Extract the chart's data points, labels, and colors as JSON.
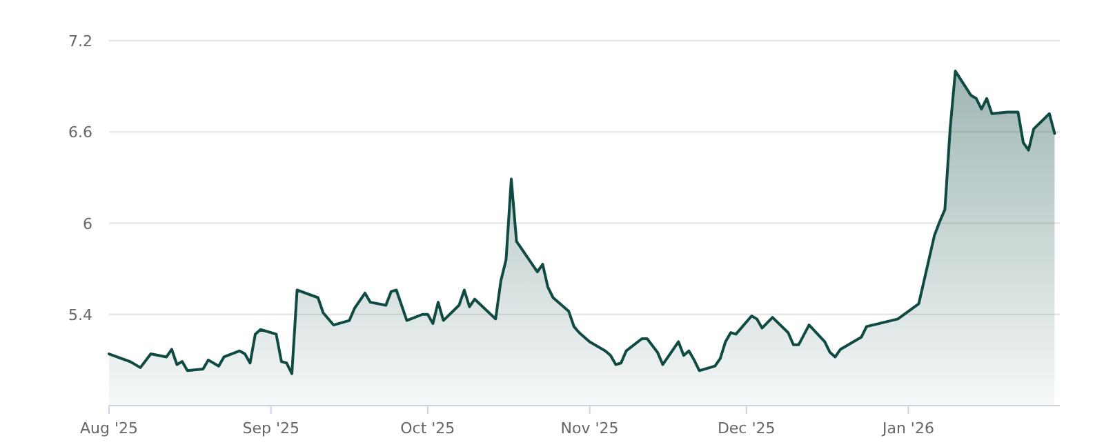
{
  "chart_data": {
    "type": "area",
    "color": "#0f4a43",
    "grid": "y",
    "ylim": [
      4.8,
      7.2
    ],
    "yticks": [
      5.4,
      6,
      6.6,
      7.2
    ],
    "xlim": [
      "2025-08-01",
      "2026-01-30"
    ],
    "xticks": [
      {
        "value": "2025-08-01",
        "label": "Aug '25"
      },
      {
        "value": "2025-09-01",
        "label": "Sep '25"
      },
      {
        "value": "2025-10-01",
        "label": "Oct '25"
      },
      {
        "value": "2025-11-01",
        "label": "Nov '25"
      },
      {
        "value": "2025-12-01",
        "label": "Dec '25"
      },
      {
        "value": "2026-01-01",
        "label": "Jan '26"
      }
    ],
    "x": [
      "2025-08-01",
      "2025-08-05",
      "2025-08-07",
      "2025-08-09",
      "2025-08-12",
      "2025-08-13",
      "2025-08-14",
      "2025-08-15",
      "2025-08-16",
      "2025-08-19",
      "2025-08-20",
      "2025-08-22",
      "2025-08-23",
      "2025-08-26",
      "2025-08-27",
      "2025-08-28",
      "2025-08-29",
      "2025-08-30",
      "2025-09-02",
      "2025-09-03",
      "2025-09-04",
      "2025-09-05",
      "2025-09-06",
      "2025-09-10",
      "2025-09-11",
      "2025-09-13",
      "2025-09-16",
      "2025-09-17",
      "2025-09-19",
      "2025-09-20",
      "2025-09-23",
      "2025-09-24",
      "2025-09-25",
      "2025-09-27",
      "2025-09-30",
      "2025-10-01",
      "2025-10-02",
      "2025-10-03",
      "2025-10-04",
      "2025-10-07",
      "2025-10-08",
      "2025-10-09",
      "2025-10-10",
      "2025-10-14",
      "2025-10-15",
      "2025-10-16",
      "2025-10-17",
      "2025-10-18",
      "2025-10-22",
      "2025-10-23",
      "2025-10-24",
      "2025-10-25",
      "2025-10-28",
      "2025-10-29",
      "2025-10-30",
      "2025-11-01",
      "2025-11-04",
      "2025-11-05",
      "2025-11-06",
      "2025-11-07",
      "2025-11-08",
      "2025-11-11",
      "2025-11-12",
      "2025-11-14",
      "2025-11-15",
      "2025-11-18",
      "2025-11-19",
      "2025-11-20",
      "2025-11-21",
      "2025-11-22",
      "2025-11-25",
      "2025-11-26",
      "2025-11-27",
      "2025-11-28",
      "2025-11-29",
      "2025-12-02",
      "2025-12-03",
      "2025-12-04",
      "2025-12-06",
      "2025-12-09",
      "2025-12-10",
      "2025-12-11",
      "2025-12-13",
      "2025-12-16",
      "2025-12-17",
      "2025-12-18",
      "2025-12-19",
      "2025-12-23",
      "2025-12-24",
      "2025-12-30",
      "2026-01-03",
      "2026-01-06",
      "2026-01-07",
      "2026-01-08",
      "2026-01-09",
      "2026-01-10",
      "2026-01-13",
      "2026-01-14",
      "2026-01-15",
      "2026-01-16",
      "2026-01-17",
      "2026-01-20",
      "2026-01-22",
      "2026-01-23",
      "2026-01-24",
      "2026-01-25",
      "2026-01-28",
      "2026-01-29"
    ],
    "values": [
      5.14,
      5.09,
      5.05,
      5.14,
      5.12,
      5.17,
      5.07,
      5.09,
      5.03,
      5.04,
      5.1,
      5.06,
      5.12,
      5.16,
      5.14,
      5.08,
      5.27,
      5.3,
      5.27,
      5.09,
      5.08,
      5.01,
      5.56,
      5.51,
      5.41,
      5.33,
      5.36,
      5.44,
      5.54,
      5.48,
      5.46,
      5.55,
      5.56,
      5.36,
      5.4,
      5.4,
      5.34,
      5.48,
      5.36,
      5.46,
      5.56,
      5.45,
      5.5,
      5.37,
      5.62,
      5.76,
      6.29,
      5.88,
      5.68,
      5.73,
      5.58,
      5.51,
      5.42,
      5.32,
      5.28,
      5.22,
      5.16,
      5.13,
      5.07,
      5.08,
      5.16,
      5.24,
      5.24,
      5.15,
      5.07,
      5.22,
      5.13,
      5.16,
      5.1,
      5.03,
      5.06,
      5.11,
      5.22,
      5.28,
      5.27,
      5.39,
      5.37,
      5.31,
      5.38,
      5.28,
      5.2,
      5.2,
      5.33,
      5.22,
      5.15,
      5.12,
      5.17,
      5.25,
      5.32,
      5.37,
      5.47,
      5.92,
      6.01,
      6.09,
      6.62,
      7.0,
      6.84,
      6.82,
      6.75,
      6.82,
      6.72,
      6.73,
      6.73,
      6.53,
      6.48,
      6.62,
      6.72,
      6.59
    ]
  }
}
